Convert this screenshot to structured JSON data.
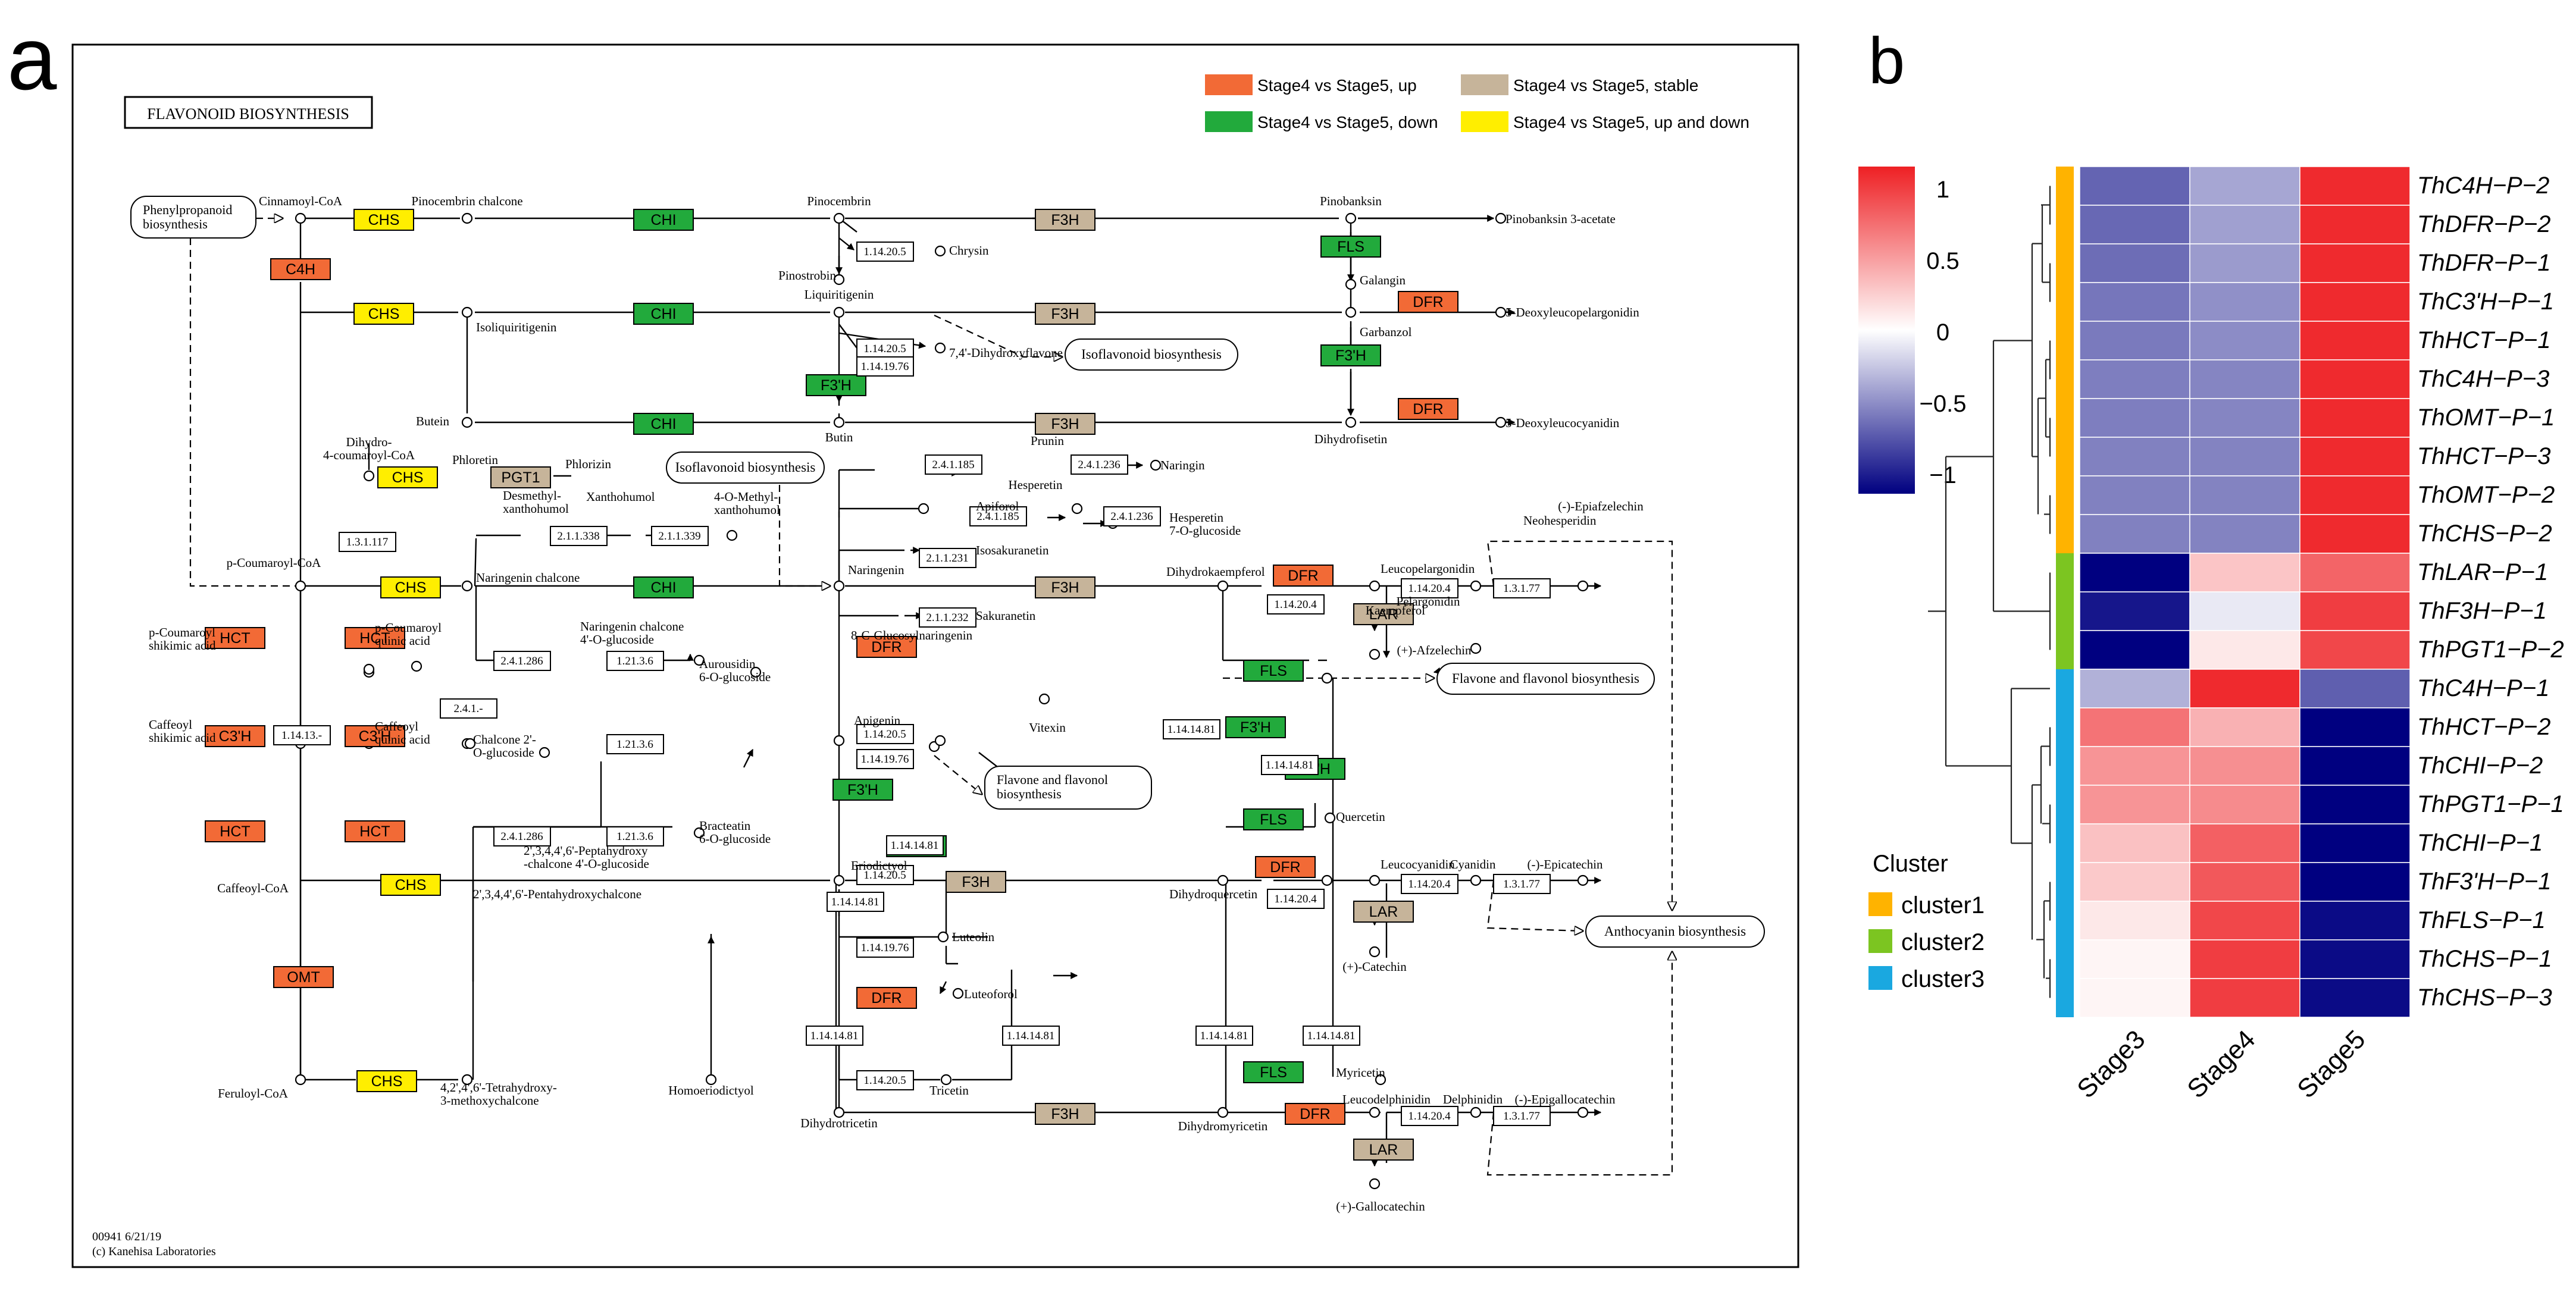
{
  "panel_a": {
    "label": "a",
    "title": "FLAVONOID BIOSYNTHESIS",
    "legend": [
      {
        "text": "Stage4 vs Stage5, up",
        "color": "#f26a36"
      },
      {
        "text": "Stage4 vs Stage5, stable",
        "color": "#c6b49a"
      },
      {
        "text": "Stage4 vs Stage5, down",
        "color": "#22aa3c"
      },
      {
        "text": "Stage4 vs Stage5, up and down",
        "color": "#ffee00"
      }
    ],
    "footer": [
      "00941 6/21/19",
      "(c) Kanehisa Laboratories"
    ],
    "boxes": [
      {
        "label": "CHS",
        "c": "yellow"
      },
      {
        "label": "C4H",
        "c": "up"
      },
      {
        "label": "CHI",
        "c": "down"
      },
      {
        "label": "F3H",
        "c": "stable"
      },
      {
        "label": "FLS",
        "c": "down"
      },
      {
        "label": "CHS",
        "c": "yellow"
      },
      {
        "label": "CHI",
        "c": "down"
      },
      {
        "label": "F3H",
        "c": "stable"
      },
      {
        "label": "DFR",
        "c": "up"
      },
      {
        "label": "F3'H",
        "c": "down"
      },
      {
        "label": "F3'H",
        "c": "down"
      },
      {
        "label": "CHI",
        "c": "down"
      },
      {
        "label": "F3H",
        "c": "stable"
      },
      {
        "label": "DFR",
        "c": "up"
      },
      {
        "label": "CHS",
        "c": "yellow"
      },
      {
        "label": "PGT1",
        "c": "stable"
      },
      {
        "label": "CHS",
        "c": "yellow"
      },
      {
        "label": "CHI",
        "c": "down"
      },
      {
        "label": "HCT",
        "c": "up"
      },
      {
        "label": "HCT",
        "c": "up"
      },
      {
        "label": "C3'H",
        "c": "up"
      },
      {
        "label": "C3'H",
        "c": "up"
      },
      {
        "label": "HCT",
        "c": "up"
      },
      {
        "label": "HCT",
        "c": "up"
      },
      {
        "label": "F3H",
        "c": "stable"
      },
      {
        "label": "DFR",
        "c": "up"
      },
      {
        "label": "DFR",
        "c": "up"
      },
      {
        "label": "LAR",
        "c": "stable"
      },
      {
        "label": "FLS",
        "c": "down"
      },
      {
        "label": "F3'H",
        "c": "down"
      },
      {
        "label": "F3'H",
        "c": "down"
      },
      {
        "label": "F3'H",
        "c": "down"
      },
      {
        "label": "F3'H",
        "c": "down"
      },
      {
        "label": "CHS",
        "c": "yellow"
      },
      {
        "label": "F3H",
        "c": "stable"
      },
      {
        "label": "FLS",
        "c": "down"
      },
      {
        "label": "DFR",
        "c": "up"
      },
      {
        "label": "LAR",
        "c": "stable"
      },
      {
        "label": "OMT",
        "c": "up"
      },
      {
        "label": "DFR",
        "c": "up"
      },
      {
        "label": "CHS",
        "c": "yellow"
      },
      {
        "label": "F3H",
        "c": "stable"
      },
      {
        "label": "FLS",
        "c": "down"
      },
      {
        "label": "DFR",
        "c": "up"
      },
      {
        "label": "LAR",
        "c": "stable"
      }
    ],
    "ec_numbers": [
      "1.14.20.5",
      "1.14.20.5",
      "1.14.19.76",
      "1.3.1.117",
      "2.1.1.338",
      "2.1.1.339",
      "2.4.1.185",
      "2.4.1.236",
      "2.4.1.185",
      "2.4.1.236",
      "2.1.1.231",
      "2.1.1.232",
      "1.14.20.4",
      "1.14.20.4",
      "1.3.1.77",
      "2.4.1.286",
      "1.21.3.6",
      "1.14.13.-",
      "2.4.1.-",
      "1.21.3.6",
      "2.4.1.286",
      "1.21.3.6",
      "1.14.20.5",
      "1.14.19.76",
      "1.14.14.81",
      "1.14.14.81",
      "1.14.14.81",
      "1.14.14.81",
      "1.14.20.5",
      "1.14.19.76",
      "1.14.20.4",
      "1.14.20.4",
      "1.3.1.77",
      "1.14.14.81",
      "1.14.14.81",
      "1.14.20.5",
      "1.14.14.81",
      "1.14.14.81",
      "1.14.20.4",
      "1.3.1.77"
    ],
    "compounds": [
      "Cinnamoyl-CoA",
      "Pinocembrin chalcone",
      "Pinocembrin",
      "Pinobanksin",
      "Pinobanksin 3-acetate",
      "Chrysin",
      "Pinostrobin",
      "Galangin",
      "Liquiritigenin",
      "5-Deoxyleucopelargonidin",
      "Isoliquiritigenin",
      "7,4'-Dihydroxyflavone",
      "Garbanzol",
      "Butein",
      "Butin",
      "Dihydrofisetin",
      "5-Deoxyleucocyanidin",
      "Phloretin",
      "Phlorizin",
      "Prunin",
      "Naringin",
      "Hesperetin",
      "Hesperetin 7-O-glucoside",
      "Neohesperidin",
      "Desmethyl-xanthohumol",
      "Xanthohumol",
      "4-O-Methyl-xanthohumol",
      "Isosakuranetin",
      "p-Coumaroyl-CoA",
      "Naringenin chalcone",
      "Naringenin",
      "Dihydrokaempferol",
      "Leucopelargonidin",
      "Pelargonidin",
      "(-)-Epiafzelechin",
      "(+)-Afzelechin",
      "Kaempferol",
      "Sakuranetin",
      "Apiforol",
      "8-C-Glucosylnaringenin",
      "Vitexin",
      "p-Coumaroyl shikimic acid",
      "p-Coumaroyl quinic acid",
      "Naringenin chalcone 4'-O-glucoside",
      "Aurousidin 6-O-glucoside",
      "Chalcone 2'-O-glucoside",
      "Apigenin",
      "Caffeoyl shikimic acid",
      "Caffeoyl quinic acid",
      "2',3,4,4',6'-Peptahydroxy -chalcone 4'-O-glucoside",
      "Bracteatin 6-O-glucoside",
      "Quercetin",
      "Caffeoyl-CoA",
      "2',3,4,4',6'-Pentahydroxychalcone",
      "Eriodictyol",
      "Dihydroquercetin",
      "Leucocyanidin",
      "Cyanidin",
      "(-)-Epicatechin",
      "(+)-Catechin",
      "Luteolin",
      "Luteoforol",
      "Feruloyl-CoA",
      "4,2',4',6'-Tetrahydroxy- 3-methoxychalcone",
      "Homoeriodictyol",
      "Tricetin",
      "Dihydrotricetin",
      "Myricetin",
      "Dihydromyricetin",
      "Leucodelphinidin",
      "Delphinidin",
      "(-)-Epigallocatechin",
      "(+)-Gallocatechin",
      "Dihydro- 4-coumaroyl-CoA"
    ],
    "maps": [
      "Phenylpropanoid biosynthesis",
      "Isoflavonoid biosynthesis",
      "Isoflavonoid biosynthesis",
      "Flavone and flavonol biosynthesis",
      "Flavone and flavonol biosynthesis",
      "Anthocyanin biosynthesis"
    ]
  },
  "panel_b": {
    "label": "b",
    "colorbar": {
      "ticks": [
        "1",
        "0.5",
        "0",
        "−0.5",
        "−1"
      ],
      "colors": {
        "high": "#ee2024",
        "mid": "#ffffff",
        "low": "#000080"
      }
    },
    "cluster_legend": {
      "title": "Cluster",
      "items": [
        {
          "name": "cluster1",
          "color": "#ffb300"
        },
        {
          "name": "cluster2",
          "color": "#7cc521"
        },
        {
          "name": "cluster3",
          "color": "#1aa8e0"
        }
      ]
    },
    "chart_data": {
      "type": "heatmap",
      "columns": [
        "Stage3",
        "Stage4",
        "Stage5"
      ],
      "range": [
        -1.15,
        1.15
      ],
      "rows": [
        {
          "name": "ThC4H−P−2",
          "cluster": 1,
          "values": [
            -0.7,
            -0.4,
            1.1
          ]
        },
        {
          "name": "ThDFR−P−2",
          "cluster": 1,
          "values": [
            -0.68,
            -0.43,
            1.1
          ]
        },
        {
          "name": "ThDFR−P−1",
          "cluster": 1,
          "values": [
            -0.66,
            -0.45,
            1.1
          ]
        },
        {
          "name": "ThC3'H−P−1",
          "cluster": 1,
          "values": [
            -0.62,
            -0.5,
            1.1
          ]
        },
        {
          "name": "ThHCT−P−1",
          "cluster": 1,
          "values": [
            -0.6,
            -0.52,
            1.1
          ]
        },
        {
          "name": "ThC4H−P−3",
          "cluster": 1,
          "values": [
            -0.58,
            -0.55,
            1.1
          ]
        },
        {
          "name": "ThOMT−P−1",
          "cluster": 1,
          "values": [
            -0.58,
            -0.55,
            1.1
          ]
        },
        {
          "name": "ThHCT−P−3",
          "cluster": 1,
          "values": [
            -0.57,
            -0.56,
            1.1
          ]
        },
        {
          "name": "ThOMT−P−2",
          "cluster": 1,
          "values": [
            -0.57,
            -0.56,
            1.1
          ]
        },
        {
          "name": "ThCHS−P−2",
          "cluster": 1,
          "values": [
            -0.57,
            -0.56,
            1.1
          ]
        },
        {
          "name": "ThLAR−P−1",
          "cluster": 2,
          "values": [
            -1.15,
            0.3,
            0.8
          ]
        },
        {
          "name": "ThF3H−P−1",
          "cluster": 2,
          "values": [
            -1.05,
            -0.1,
            1.0
          ]
        },
        {
          "name": "ThPGT1−P−2",
          "cluster": 2,
          "values": [
            -1.15,
            0.12,
            0.95
          ]
        },
        {
          "name": "ThC4H−P−1",
          "cluster": 3,
          "values": [
            -0.35,
            1.1,
            -0.72
          ]
        },
        {
          "name": "ThHCT−P−2",
          "cluster": 3,
          "values": [
            0.72,
            0.4,
            -1.15
          ]
        },
        {
          "name": "ThCHI−P−2",
          "cluster": 3,
          "values": [
            0.55,
            0.58,
            -1.15
          ]
        },
        {
          "name": "ThPGT1−P−1",
          "cluster": 3,
          "values": [
            0.55,
            0.6,
            -1.15
          ]
        },
        {
          "name": "ThCHI−P−1",
          "cluster": 3,
          "values": [
            0.32,
            0.82,
            -1.15
          ]
        },
        {
          "name": "ThF3'H−P−1",
          "cluster": 3,
          "values": [
            0.28,
            0.86,
            -1.15
          ]
        },
        {
          "name": "ThFLS−P−1",
          "cluster": 3,
          "values": [
            0.12,
            0.95,
            -1.1
          ]
        },
        {
          "name": "ThCHS−P−1",
          "cluster": 3,
          "values": [
            0.05,
            1.0,
            -1.1
          ]
        },
        {
          "name": "ThCHS−P−3",
          "cluster": 3,
          "values": [
            0.05,
            1.0,
            -1.1
          ]
        }
      ]
    }
  }
}
